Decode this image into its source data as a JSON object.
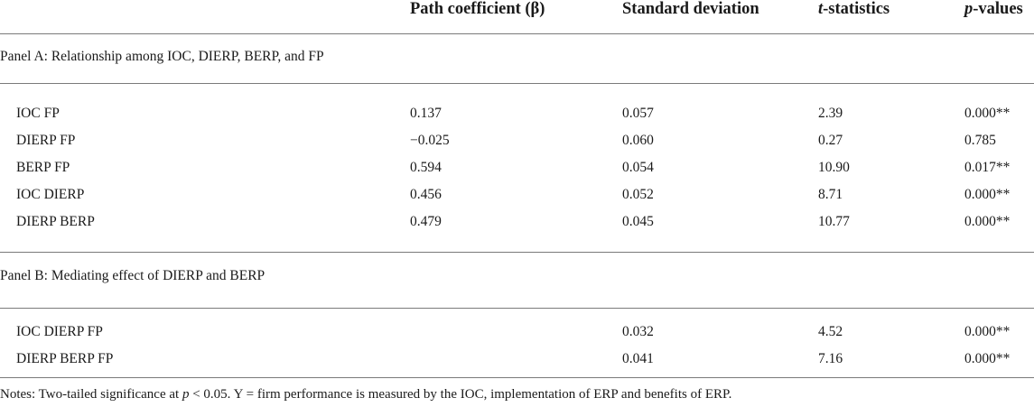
{
  "table": {
    "columns": [
      {
        "label": "Path coefficient (β)",
        "italic_prefix": "",
        "rest": "Path coefficient (β)"
      },
      {
        "label": "Standard deviation",
        "italic_prefix": "",
        "rest": "Standard deviation"
      },
      {
        "label": "t-statistics",
        "italic_prefix": "t",
        "rest": "-statistics"
      },
      {
        "label": "p-values",
        "italic_prefix": "p",
        "rest": "-values"
      }
    ],
    "panel_a": {
      "title": "Panel A: Relationship among IOC, DIERP, BERP, and FP",
      "rows": [
        {
          "path": "IOC FP",
          "beta": "0.137",
          "sd": "0.057",
          "t": "2.39",
          "p": "0.000**"
        },
        {
          "path": "DIERP FP",
          "beta": "−0.025",
          "sd": "0.060",
          "t": "0.27",
          "p": "0.785"
        },
        {
          "path": "BERP FP",
          "beta": "0.594",
          "sd": "0.054",
          "t": "10.90",
          "p": "0.017**"
        },
        {
          "path": "IOC DIERP",
          "beta": "0.456",
          "sd": "0.052",
          "t": "8.71",
          "p": "0.000**"
        },
        {
          "path": "DIERP BERP",
          "beta": "0.479",
          "sd": "0.045",
          "t": "10.77",
          "p": "0.000**"
        }
      ]
    },
    "panel_b": {
      "title": "Panel B: Mediating effect of DIERP and BERP",
      "rows": [
        {
          "path": "IOC DIERP FP",
          "beta": "",
          "sd": "0.032",
          "t": "4.52",
          "p": "0.000**"
        },
        {
          "path": "DIERP BERP FP",
          "beta": "",
          "sd": "0.041",
          "t": "7.16",
          "p": "0.000**"
        }
      ]
    }
  },
  "notes": {
    "prefix": "Notes: Two-tailed significance at ",
    "italic": "p",
    "suffix": " < 0.05. Y = firm performance is measured by the IOC, implementation of ERP and benefits of ERP."
  }
}
